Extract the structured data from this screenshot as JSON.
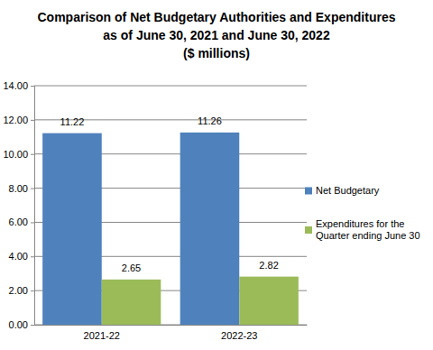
{
  "chart_data": {
    "type": "bar",
    "title": [
      "Comparison of Net Budgetary Authorities and Expenditures",
      "as of June 30, 2021 and June 30, 2022",
      "($ millions)"
    ],
    "categories": [
      "2021-22",
      "2022-23"
    ],
    "series": [
      {
        "name": "Net Budgetary",
        "color": "#4f81bd",
        "values": [
          11.22,
          11.26
        ]
      },
      {
        "name": "Expenditures for the Quarter ending June 30",
        "color": "#9bbb59",
        "values": [
          2.65,
          2.82
        ]
      }
    ],
    "ylim": [
      0,
      14
    ],
    "yticks": [
      {
        "value": 0,
        "label": "0.00"
      },
      {
        "value": 2,
        "label": "2.00"
      },
      {
        "value": 4,
        "label": "4.00"
      },
      {
        "value": 6,
        "label": "6.00"
      },
      {
        "value": 8,
        "label": "8.00"
      },
      {
        "value": 10,
        "label": "10.00"
      },
      {
        "value": 12,
        "label": "12.00"
      },
      {
        "value": 14,
        "label": "14.00"
      }
    ],
    "grid": true,
    "data_labels": true,
    "legend": "right"
  }
}
